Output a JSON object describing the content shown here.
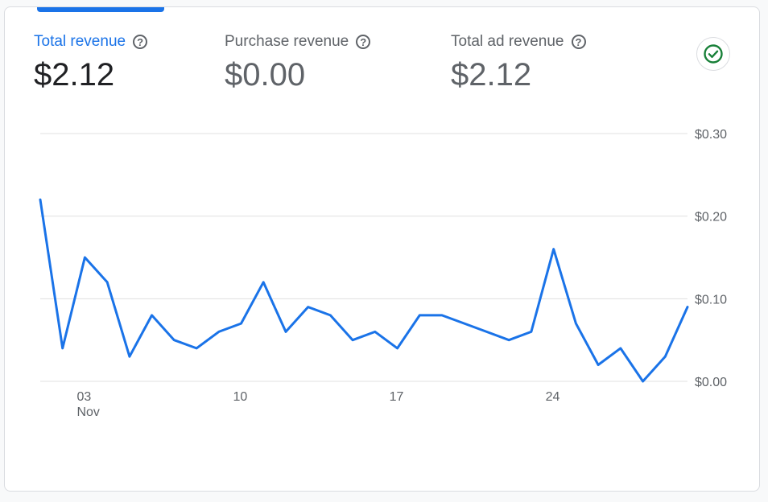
{
  "metrics": [
    {
      "label": "Total revenue",
      "value": "$2.12",
      "active": true
    },
    {
      "label": "Purchase revenue",
      "value": "$0.00",
      "active": false
    },
    {
      "label": "Total ad revenue",
      "value": "$2.12",
      "active": false
    }
  ],
  "status_icon": "check-circle-icon",
  "colors": {
    "accent": "#1a73e8",
    "success": "#188038",
    "line": "#1a73e8",
    "grid": "#e0e0e0"
  },
  "chart_data": {
    "type": "line",
    "x": [
      "Nov 1",
      "Nov 2",
      "Nov 3",
      "Nov 4",
      "Nov 5",
      "Nov 6",
      "Nov 7",
      "Nov 8",
      "Nov 9",
      "Nov 10",
      "Nov 11",
      "Nov 12",
      "Nov 13",
      "Nov 14",
      "Nov 15",
      "Nov 16",
      "Nov 17",
      "Nov 18",
      "Nov 19",
      "Nov 20",
      "Nov 21",
      "Nov 22",
      "Nov 23",
      "Nov 24",
      "Nov 25",
      "Nov 26",
      "Nov 27",
      "Nov 28",
      "Nov 29",
      "Nov 30"
    ],
    "series": [
      {
        "values": [
          0.22,
          0.04,
          0.15,
          0.12,
          0.03,
          0.08,
          0.05,
          0.04,
          0.06,
          0.07,
          0.12,
          0.06,
          0.09,
          0.08,
          0.05,
          0.06,
          0.04,
          0.08,
          0.08,
          0.07,
          0.06,
          0.05,
          0.06,
          0.16,
          0.07,
          0.02,
          0.04,
          0.0,
          0.03,
          0.09
        ]
      }
    ],
    "x_ticks": [
      {
        "index": 2,
        "label": "03",
        "sublabel": "Nov"
      },
      {
        "index": 9,
        "label": "10",
        "sublabel": ""
      },
      {
        "index": 16,
        "label": "17",
        "sublabel": ""
      },
      {
        "index": 23,
        "label": "24",
        "sublabel": ""
      }
    ],
    "y_ticks": [
      {
        "value": 0.3,
        "label": "$0.30"
      },
      {
        "value": 0.2,
        "label": "$0.20"
      },
      {
        "value": 0.1,
        "label": "$0.10"
      },
      {
        "value": 0.0,
        "label": "$0.00"
      }
    ],
    "ylim": [
      0,
      0.3
    ],
    "grid": true,
    "y_axis_position": "right",
    "legend": "none"
  }
}
